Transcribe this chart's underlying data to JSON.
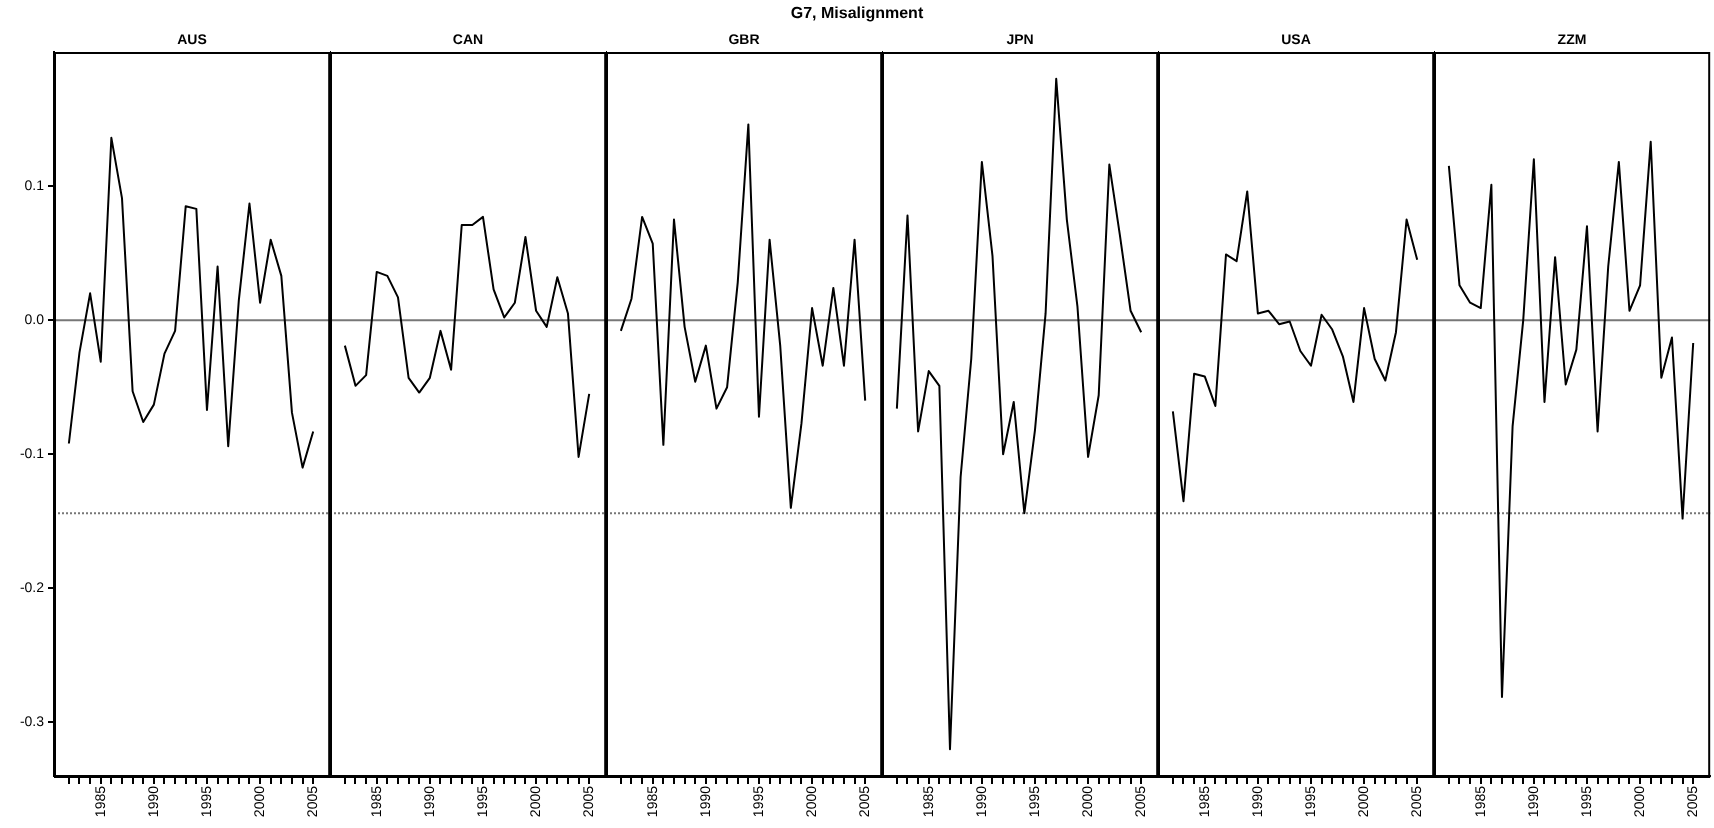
{
  "chart_data": [
    {
      "type": "line",
      "title": "AUS",
      "annotations": [
        "G7, Misalignment"
      ],
      "color": "#000000",
      "xlim": [
        1980.6,
        2006.6
      ],
      "ylim": [
        -0.34,
        0.2
      ],
      "yticks": [
        {
          "value": -0.3,
          "label": "-0.3"
        },
        {
          "value": -0.2,
          "label": "-0.2"
        },
        {
          "value": -0.1,
          "label": "-0.1"
        },
        {
          "value": 0,
          "label": "0.0"
        },
        {
          "value": 0.1,
          "label": "0.1"
        }
      ],
      "xticks": [
        {
          "value": 1982,
          "label": null
        },
        {
          "value": 1983,
          "label": null
        },
        {
          "value": 1984,
          "label": null
        },
        1985,
        {
          "value": 1986,
          "label": null
        },
        {
          "value": 1987,
          "label": null
        },
        {
          "value": 1988,
          "label": null
        },
        {
          "value": 1989,
          "label": null
        },
        1990,
        {
          "value": 1991,
          "label": null
        },
        {
          "value": 1992,
          "label": null
        },
        {
          "value": 1993,
          "label": null
        },
        {
          "value": 1994,
          "label": null
        },
        1995,
        {
          "value": 1996,
          "label": null
        },
        {
          "value": 1997,
          "label": null
        },
        {
          "value": 1998,
          "label": null
        },
        {
          "value": 1999,
          "label": null
        },
        2000,
        {
          "value": 2001,
          "label": null
        },
        {
          "value": 2002,
          "label": null
        },
        {
          "value": 2003,
          "label": null
        },
        {
          "value": 2004,
          "label": null
        },
        2005
      ],
      "ref_lines": [
        {
          "axis": "y",
          "value": 0,
          "line_style": "solid"
        },
        {
          "axis": "y",
          "value": -0.144,
          "line_style": "dotted"
        }
      ],
      "x": [
        1982,
        1983,
        1984,
        1985,
        1986,
        1987,
        1988,
        1989,
        1990,
        1991,
        1992,
        1993,
        1994,
        1995,
        1996,
        1997,
        1998,
        1999,
        2000,
        2001,
        2002,
        2003,
        2004,
        2005
      ],
      "values": [
        -0.092,
        -0.024,
        0.02,
        -0.031,
        0.136,
        0.091,
        -0.053,
        -0.076,
        -0.063,
        -0.025,
        -0.008,
        0.085,
        0.083,
        -0.067,
        0.04,
        -0.094,
        0.015,
        0.087,
        0.013,
        0.06,
        0.033,
        -0.069,
        -0.11,
        -0.083
      ]
    },
    {
      "type": "line",
      "title": "CAN",
      "color": "#000000",
      "tick_labels": "x",
      "xlim": [
        1980.6,
        2006.6
      ],
      "ylim": [
        -0.34,
        0.2
      ],
      "xticks": [
        {
          "value": 1982,
          "label": null
        },
        {
          "value": 1983,
          "label": null
        },
        {
          "value": 1984,
          "label": null
        },
        1985,
        {
          "value": 1986,
          "label": null
        },
        {
          "value": 1987,
          "label": null
        },
        {
          "value": 1988,
          "label": null
        },
        {
          "value": 1989,
          "label": null
        },
        1990,
        {
          "value": 1991,
          "label": null
        },
        {
          "value": 1992,
          "label": null
        },
        {
          "value": 1993,
          "label": null
        },
        {
          "value": 1994,
          "label": null
        },
        1995,
        {
          "value": 1996,
          "label": null
        },
        {
          "value": 1997,
          "label": null
        },
        {
          "value": 1998,
          "label": null
        },
        {
          "value": 1999,
          "label": null
        },
        2000,
        {
          "value": 2001,
          "label": null
        },
        {
          "value": 2002,
          "label": null
        },
        {
          "value": 2003,
          "label": null
        },
        {
          "value": 2004,
          "label": null
        },
        2005
      ],
      "ref_lines": [
        {
          "axis": "y",
          "value": 0,
          "line_style": "solid"
        },
        {
          "axis": "y",
          "value": -0.144,
          "line_style": "dotted"
        }
      ],
      "x": [
        1982,
        1983,
        1984,
        1985,
        1986,
        1987,
        1988,
        1989,
        1990,
        1991,
        1992,
        1993,
        1994,
        1995,
        1996,
        1997,
        1998,
        1999,
        2000,
        2001,
        2002,
        2003,
        2004,
        2005
      ],
      "values": [
        -0.019,
        -0.049,
        -0.041,
        0.036,
        0.033,
        0.017,
        -0.043,
        -0.054,
        -0.043,
        -0.008,
        -0.037,
        0.071,
        0.071,
        0.077,
        0.023,
        0.002,
        0.013,
        0.062,
        0.007,
        -0.005,
        0.032,
        0.005,
        -0.102,
        -0.055
      ]
    },
    {
      "type": "line",
      "title": "GBR",
      "color": "#000000",
      "tick_labels": "x",
      "xlim": [
        1980.6,
        2006.6
      ],
      "ylim": [
        -0.34,
        0.2
      ],
      "xticks": [
        {
          "value": 1982,
          "label": null
        },
        {
          "value": 1983,
          "label": null
        },
        {
          "value": 1984,
          "label": null
        },
        1985,
        {
          "value": 1986,
          "label": null
        },
        {
          "value": 1987,
          "label": null
        },
        {
          "value": 1988,
          "label": null
        },
        {
          "value": 1989,
          "label": null
        },
        1990,
        {
          "value": 1991,
          "label": null
        },
        {
          "value": 1992,
          "label": null
        },
        {
          "value": 1993,
          "label": null
        },
        {
          "value": 1994,
          "label": null
        },
        1995,
        {
          "value": 1996,
          "label": null
        },
        {
          "value": 1997,
          "label": null
        },
        {
          "value": 1998,
          "label": null
        },
        {
          "value": 1999,
          "label": null
        },
        2000,
        {
          "value": 2001,
          "label": null
        },
        {
          "value": 2002,
          "label": null
        },
        {
          "value": 2003,
          "label": null
        },
        {
          "value": 2004,
          "label": null
        },
        2005
      ],
      "ref_lines": [
        {
          "axis": "y",
          "value": 0,
          "line_style": "solid"
        },
        {
          "axis": "y",
          "value": -0.144,
          "line_style": "dotted"
        }
      ],
      "x": [
        1982,
        1983,
        1984,
        1985,
        1986,
        1987,
        1988,
        1989,
        1990,
        1991,
        1992,
        1993,
        1994,
        1995,
        1996,
        1997,
        1998,
        1999,
        2000,
        2001,
        2002,
        2003,
        2004,
        2005
      ],
      "values": [
        -0.008,
        0.016,
        0.077,
        0.057,
        -0.093,
        0.075,
        -0.005,
        -0.046,
        -0.019,
        -0.066,
        -0.05,
        0.028,
        0.146,
        -0.072,
        0.06,
        -0.019,
        -0.14,
        -0.077,
        0.009,
        -0.034,
        0.024,
        -0.034,
        0.06,
        -0.06
      ]
    },
    {
      "type": "line",
      "title": "JPN",
      "color": "#000000",
      "tick_labels": "x",
      "xlim": [
        1980.6,
        2006.6
      ],
      "ylim": [
        -0.34,
        0.2
      ],
      "xticks": [
        {
          "value": 1982,
          "label": null
        },
        {
          "value": 1983,
          "label": null
        },
        {
          "value": 1984,
          "label": null
        },
        1985,
        {
          "value": 1986,
          "label": null
        },
        {
          "value": 1987,
          "label": null
        },
        {
          "value": 1988,
          "label": null
        },
        {
          "value": 1989,
          "label": null
        },
        1990,
        {
          "value": 1991,
          "label": null
        },
        {
          "value": 1992,
          "label": null
        },
        {
          "value": 1993,
          "label": null
        },
        {
          "value": 1994,
          "label": null
        },
        1995,
        {
          "value": 1996,
          "label": null
        },
        {
          "value": 1997,
          "label": null
        },
        {
          "value": 1998,
          "label": null
        },
        {
          "value": 1999,
          "label": null
        },
        2000,
        {
          "value": 2001,
          "label": null
        },
        {
          "value": 2002,
          "label": null
        },
        {
          "value": 2003,
          "label": null
        },
        {
          "value": 2004,
          "label": null
        },
        2005
      ],
      "ref_lines": [
        {
          "axis": "y",
          "value": 0,
          "line_style": "solid"
        },
        {
          "axis": "y",
          "value": -0.144,
          "line_style": "dotted"
        }
      ],
      "x": [
        1982,
        1983,
        1984,
        1985,
        1986,
        1987,
        1988,
        1989,
        1990,
        1991,
        1992,
        1993,
        1994,
        1995,
        1996,
        1997,
        1998,
        1999,
        2000,
        2001,
        2002,
        2003,
        2004,
        2005
      ],
      "values": [
        -0.066,
        0.078,
        -0.083,
        -0.038,
        -0.049,
        -0.32,
        -0.117,
        -0.029,
        0.118,
        0.048,
        -0.1,
        -0.061,
        -0.144,
        -0.082,
        0.005,
        0.18,
        0.075,
        0.01,
        -0.102,
        -0.056,
        0.116,
        0.063,
        0.007,
        -0.009
      ]
    },
    {
      "type": "line",
      "title": "USA",
      "color": "#000000",
      "tick_labels": "x",
      "xlim": [
        1980.6,
        2006.6
      ],
      "ylim": [
        -0.34,
        0.2
      ],
      "xticks": [
        {
          "value": 1982,
          "label": null
        },
        {
          "value": 1983,
          "label": null
        },
        {
          "value": 1984,
          "label": null
        },
        1985,
        {
          "value": 1986,
          "label": null
        },
        {
          "value": 1987,
          "label": null
        },
        {
          "value": 1988,
          "label": null
        },
        {
          "value": 1989,
          "label": null
        },
        1990,
        {
          "value": 1991,
          "label": null
        },
        {
          "value": 1992,
          "label": null
        },
        {
          "value": 1993,
          "label": null
        },
        {
          "value": 1994,
          "label": null
        },
        1995,
        {
          "value": 1996,
          "label": null
        },
        {
          "value": 1997,
          "label": null
        },
        {
          "value": 1998,
          "label": null
        },
        {
          "value": 1999,
          "label": null
        },
        2000,
        {
          "value": 2001,
          "label": null
        },
        {
          "value": 2002,
          "label": null
        },
        {
          "value": 2003,
          "label": null
        },
        {
          "value": 2004,
          "label": null
        },
        2005
      ],
      "ref_lines": [
        {
          "axis": "y",
          "value": 0,
          "line_style": "solid"
        },
        {
          "axis": "y",
          "value": -0.144,
          "line_style": "dotted"
        }
      ],
      "x": [
        1982,
        1983,
        1984,
        1985,
        1986,
        1987,
        1988,
        1989,
        1990,
        1991,
        1992,
        1993,
        1994,
        1995,
        1996,
        1997,
        1998,
        1999,
        2000,
        2001,
        2002,
        2003,
        2004,
        2005
      ],
      "values": [
        -0.068,
        -0.135,
        -0.04,
        -0.042,
        -0.064,
        0.049,
        0.044,
        0.096,
        0.005,
        0.007,
        -0.003,
        -0.001,
        -0.023,
        -0.034,
        0.004,
        -0.007,
        -0.027,
        -0.061,
        0.009,
        -0.029,
        -0.045,
        -0.009,
        0.075,
        0.045
      ]
    },
    {
      "type": "line",
      "title": "ZZM",
      "color": "#000000",
      "tick_labels": "x",
      "xlim": [
        1980.6,
        2006.6
      ],
      "ylim": [
        -0.34,
        0.2
      ],
      "xticks": [
        {
          "value": 1982,
          "label": null
        },
        {
          "value": 1983,
          "label": null
        },
        {
          "value": 1984,
          "label": null
        },
        1985,
        {
          "value": 1986,
          "label": null
        },
        {
          "value": 1987,
          "label": null
        },
        {
          "value": 1988,
          "label": null
        },
        {
          "value": 1989,
          "label": null
        },
        1990,
        {
          "value": 1991,
          "label": null
        },
        {
          "value": 1992,
          "label": null
        },
        {
          "value": 1993,
          "label": null
        },
        {
          "value": 1994,
          "label": null
        },
        1995,
        {
          "value": 1996,
          "label": null
        },
        {
          "value": 1997,
          "label": null
        },
        {
          "value": 1998,
          "label": null
        },
        {
          "value": 1999,
          "label": null
        },
        2000,
        {
          "value": 2001,
          "label": null
        },
        {
          "value": 2002,
          "label": null
        },
        {
          "value": 2003,
          "label": null
        },
        {
          "value": 2004,
          "label": null
        },
        2005
      ],
      "ref_lines": [
        {
          "axis": "y",
          "value": 0,
          "line_style": "solid"
        },
        {
          "axis": "y",
          "value": -0.144,
          "line_style": "dotted"
        }
      ],
      "x": [
        1982,
        1983,
        1984,
        1985,
        1986,
        1987,
        1988,
        1989,
        1990,
        1991,
        1992,
        1993,
        1994,
        1995,
        1996,
        1997,
        1998,
        1999,
        2000,
        2001,
        2002,
        2003,
        2004,
        2005
      ],
      "values": [
        0.115,
        0.026,
        0.013,
        0.009,
        0.101,
        -0.281,
        -0.079,
        0.0,
        0.12,
        -0.061,
        0.047,
        -0.048,
        -0.022,
        0.07,
        -0.083,
        0.04,
        0.118,
        0.007,
        0.026,
        0.133,
        -0.043,
        -0.013,
        -0.148,
        -0.017
      ]
    }
  ]
}
